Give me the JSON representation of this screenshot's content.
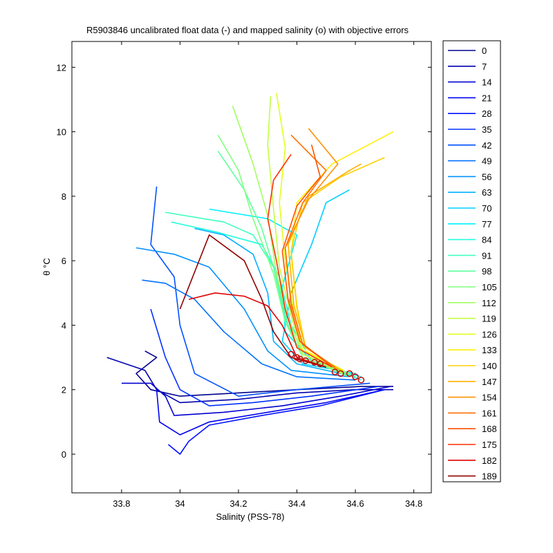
{
  "chart_data": {
    "type": "line",
    "title": "R5903846 uncalibrated float data (-) and mapped salinity (o) with objective errors",
    "xlabel": "Salinity (PSS-78)",
    "ylabel": "θ °C",
    "xlim": [
      33.63,
      34.86
    ],
    "ylim": [
      -1.2,
      12.8
    ],
    "xticks": [
      33.8,
      34,
      34.2,
      34.4,
      34.6,
      34.8
    ],
    "xtick_labels": [
      "33.8",
      "34",
      "34.2",
      "34.4",
      "34.6",
      "34.8"
    ],
    "yticks": [
      0,
      2,
      4,
      6,
      8,
      10,
      12
    ],
    "ytick_labels": [
      "0",
      "2",
      "4",
      "6",
      "8",
      "10",
      "12"
    ],
    "grid": false,
    "legend_position": "outside-right",
    "colormap": "jet",
    "series": [
      {
        "name": "0",
        "color": "#00008f",
        "x": [
          34.73,
          34.62,
          34.4,
          34.2,
          34.0,
          33.9,
          33.85,
          33.92,
          33.88
        ],
        "y": [
          2.1,
          2.1,
          2.0,
          1.9,
          1.8,
          2.0,
          2.5,
          3.0,
          3.2
        ]
      },
      {
        "name": "7",
        "color": "#0000b0",
        "x": [
          34.73,
          34.6,
          34.4,
          34.2,
          34.0,
          33.92,
          33.88,
          33.75
        ],
        "y": [
          2.0,
          2.0,
          1.9,
          1.7,
          1.6,
          2.0,
          2.6,
          3.0
        ]
      },
      {
        "name": "14",
        "color": "#0000d0",
        "x": [
          34.72,
          34.55,
          34.35,
          34.15,
          33.98,
          33.95,
          33.9,
          33.8
        ],
        "y": [
          2.1,
          1.8,
          1.5,
          1.3,
          1.2,
          1.8,
          2.2,
          2.2
        ]
      },
      {
        "name": "21",
        "color": "#0000f0",
        "x": [
          34.7,
          34.5,
          34.3,
          34.1,
          34.0,
          33.93,
          33.92
        ],
        "y": [
          2.0,
          1.6,
          1.3,
          1.0,
          0.6,
          1.0,
          2.0
        ]
      },
      {
        "name": "28",
        "color": "#0010ff",
        "x": [
          34.7,
          34.48,
          34.28,
          34.1,
          34.03,
          34.0,
          33.96
        ],
        "y": [
          2.0,
          1.5,
          1.2,
          0.9,
          0.4,
          0.0,
          0.3
        ]
      },
      {
        "name": "35",
        "color": "#0030ff",
        "x": [
          34.68,
          34.45,
          34.25,
          34.1,
          34.0,
          33.95,
          33.9
        ],
        "y": [
          2.1,
          1.8,
          1.6,
          1.5,
          2.0,
          3.0,
          4.5
        ]
      },
      {
        "name": "42",
        "color": "#0050ff",
        "x": [
          34.65,
          34.4,
          34.2,
          34.05,
          34.0,
          33.98,
          33.9,
          33.92
        ],
        "y": [
          2.2,
          2.0,
          1.8,
          2.5,
          4.0,
          5.5,
          6.5,
          8.3
        ]
      },
      {
        "name": "49",
        "color": "#0070ff",
        "x": [
          34.6,
          34.4,
          34.28,
          34.15,
          34.05,
          33.95,
          33.87
        ],
        "y": [
          2.3,
          2.4,
          2.8,
          3.8,
          4.8,
          5.3,
          5.4
        ]
      },
      {
        "name": "56",
        "color": "#0090ff",
        "x": [
          34.58,
          34.38,
          34.3,
          34.22,
          34.1,
          33.98,
          33.85
        ],
        "y": [
          2.4,
          2.6,
          3.2,
          4.5,
          5.8,
          6.2,
          6.4
        ]
      },
      {
        "name": "63",
        "color": "#00b0ff",
        "x": [
          34.6,
          34.4,
          34.32,
          34.3,
          34.25,
          34.15,
          34.05
        ],
        "y": [
          2.4,
          2.8,
          3.5,
          5.0,
          6.2,
          6.8,
          7.0
        ]
      },
      {
        "name": "70",
        "color": "#00d0ff",
        "x": [
          34.6,
          34.42,
          34.35,
          34.38,
          34.45,
          34.5,
          34.58
        ],
        "y": [
          2.5,
          2.8,
          3.5,
          5.0,
          6.5,
          7.8,
          8.2
        ]
      },
      {
        "name": "77",
        "color": "#00f0ff",
        "x": [
          34.62,
          34.45,
          34.36,
          34.35,
          34.4,
          34.3,
          34.1
        ],
        "y": [
          2.4,
          2.9,
          3.8,
          5.2,
          6.8,
          7.3,
          7.6
        ]
      },
      {
        "name": "84",
        "color": "#20ffdf",
        "x": [
          34.62,
          34.45,
          34.38,
          34.34,
          34.28,
          34.12,
          33.97
        ],
        "y": [
          2.3,
          2.9,
          4.0,
          5.5,
          6.5,
          6.9,
          7.2
        ]
      },
      {
        "name": "91",
        "color": "#40ffbf",
        "x": [
          34.6,
          34.42,
          34.36,
          34.32,
          34.25,
          34.15,
          33.95
        ],
        "y": [
          2.4,
          3.0,
          4.2,
          5.8,
          6.8,
          7.2,
          7.5
        ]
      },
      {
        "name": "98",
        "color": "#60ff9f",
        "x": [
          34.6,
          34.42,
          34.37,
          34.33,
          34.28,
          34.22,
          34.13
        ],
        "y": [
          2.4,
          3.0,
          4.0,
          5.5,
          7.0,
          8.2,
          9.4
        ]
      },
      {
        "name": "105",
        "color": "#80ff80",
        "x": [
          34.58,
          34.42,
          34.36,
          34.32,
          34.25,
          34.2,
          34.13
        ],
        "y": [
          2.4,
          3.0,
          4.1,
          5.6,
          7.3,
          8.8,
          9.9
        ]
      },
      {
        "name": "112",
        "color": "#a0ff60",
        "x": [
          34.58,
          34.42,
          34.37,
          34.33,
          34.3,
          34.25,
          34.18
        ],
        "y": [
          2.5,
          3.1,
          4.2,
          5.6,
          7.4,
          9.0,
          10.8
        ]
      },
      {
        "name": "119",
        "color": "#c0ff40",
        "x": [
          34.56,
          34.42,
          34.38,
          34.34,
          34.32,
          34.3,
          34.31
        ],
        "y": [
          2.5,
          3.1,
          4.3,
          5.8,
          7.6,
          9.6,
          11.1
        ]
      },
      {
        "name": "126",
        "color": "#e0ff20",
        "x": [
          34.56,
          34.42,
          34.39,
          34.36,
          34.34,
          34.36,
          34.33
        ],
        "y": [
          2.6,
          3.2,
          4.4,
          6.0,
          7.8,
          9.5,
          11.2
        ]
      },
      {
        "name": "133",
        "color": "#ffef00",
        "x": [
          34.56,
          34.43,
          34.4,
          34.38,
          34.4,
          34.52,
          34.73
        ],
        "y": [
          2.6,
          3.2,
          4.5,
          6.2,
          7.8,
          9.0,
          10.0
        ]
      },
      {
        "name": "140",
        "color": "#ffcf00",
        "x": [
          34.55,
          34.43,
          34.4,
          34.38,
          34.42,
          34.55,
          34.7
        ],
        "y": [
          2.6,
          3.3,
          4.6,
          6.3,
          7.8,
          8.6,
          9.2
        ]
      },
      {
        "name": "147",
        "color": "#ffaf00",
        "x": [
          34.55,
          34.43,
          34.39,
          34.37,
          34.44,
          34.58,
          34.62
        ],
        "y": [
          2.6,
          3.3,
          4.6,
          6.5,
          8.0,
          8.8,
          9.0
        ]
      },
      {
        "name": "154",
        "color": "#ff8f00",
        "x": [
          34.54,
          34.42,
          34.38,
          34.36,
          34.44,
          34.54,
          34.44
        ],
        "y": [
          2.6,
          3.4,
          4.6,
          6.4,
          7.9,
          9.0,
          10.1
        ]
      },
      {
        "name": "161",
        "color": "#ff6f00",
        "x": [
          34.53,
          34.42,
          34.38,
          34.36,
          34.42,
          34.5,
          34.38
        ],
        "y": [
          2.7,
          3.4,
          4.7,
          6.4,
          7.8,
          8.8,
          9.9
        ]
      },
      {
        "name": "168",
        "color": "#ff4f00",
        "x": [
          34.52,
          34.41,
          34.37,
          34.35,
          34.4,
          34.48,
          34.45
        ],
        "y": [
          2.7,
          3.5,
          4.8,
          6.3,
          7.7,
          8.6,
          9.6
        ]
      },
      {
        "name": "175",
        "color": "#ff2f00",
        "x": [
          34.52,
          34.4,
          34.36,
          34.33,
          34.3,
          34.32,
          34.38
        ],
        "y": [
          2.7,
          3.3,
          4.5,
          6.0,
          7.3,
          8.5,
          9.3
        ]
      },
      {
        "name": "182",
        "color": "#df0000",
        "x": [
          34.5,
          34.4,
          34.35,
          34.3,
          34.22,
          34.12,
          34.03
        ],
        "y": [
          2.7,
          3.0,
          4.0,
          4.6,
          4.9,
          5.0,
          4.8
        ]
      },
      {
        "name": "189",
        "color": "#8f0000",
        "x": [
          34.5,
          34.38,
          34.32,
          34.28,
          34.22,
          34.1,
          34.0
        ],
        "y": [
          2.7,
          3.0,
          3.8,
          4.8,
          6.0,
          6.8,
          4.5
        ]
      }
    ],
    "mapped_points": {
      "label": "mapped salinity (o)",
      "color": "#cc0000",
      "x": [
        34.4,
        34.43,
        34.46,
        34.48,
        34.53,
        34.55,
        34.58,
        34.6,
        34.62,
        34.38,
        34.41
      ],
      "y": [
        3.0,
        2.9,
        2.85,
        2.8,
        2.55,
        2.5,
        2.5,
        2.4,
        2.3,
        3.1,
        2.95
      ]
    }
  }
}
